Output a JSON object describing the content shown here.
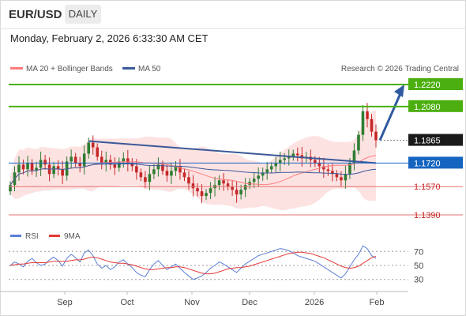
{
  "header": {
    "symbol": "EUR/USD",
    "period": "DAILY",
    "datetime": "Monday, February 2, 2026 6:33:30 AM CET"
  },
  "legend": {
    "ma20": "MA 20 + Bollinger Bands",
    "ma50": "MA 50",
    "credit": "Research © 2026 Trading Central"
  },
  "rsi_legend": {
    "rsi": "RSI",
    "ma9": "9MA"
  },
  "colors": {
    "up": "#2e7d32",
    "down": "#c62828",
    "ma20": "#ff7b7b",
    "ma50": "#3a5a9b",
    "bollinger_fill": "#fde2e2",
    "target": "#4caf10",
    "pivot": "#1565c0",
    "support": "#e57373",
    "trendline": "#3b5998",
    "arrow": "#2f5aa0",
    "rsi": "#5b7fd6",
    "rsi_ma": "#e53935"
  },
  "chart_data": {
    "type": "candlestick",
    "x_labels": [
      "Sep",
      "Oct",
      "Nov",
      "Dec",
      "2026",
      "Feb"
    ],
    "price_levels": [
      {
        "value": 1.222,
        "label": "1.2220",
        "kind": "target"
      },
      {
        "value": 1.208,
        "label": "1.2080",
        "kind": "target"
      },
      {
        "value": 1.1865,
        "label": "1.1865",
        "kind": "last"
      },
      {
        "value": 1.172,
        "label": "1.1720",
        "kind": "pivot"
      },
      {
        "value": 1.157,
        "label": "1.1570",
        "kind": "support"
      },
      {
        "value": 1.139,
        "label": "1.1390",
        "kind": "support"
      }
    ],
    "ohlc_approx": [
      1.158,
      1.166,
      1.171,
      1.168,
      1.172,
      1.167,
      1.169,
      1.174,
      1.171,
      1.165,
      1.17,
      1.168,
      1.164,
      1.173,
      1.176,
      1.172,
      1.17,
      1.178,
      1.185,
      1.182,
      1.176,
      1.172,
      1.174,
      1.171,
      1.169,
      1.173,
      1.175,
      1.172,
      1.17,
      1.166,
      1.163,
      1.16,
      1.165,
      1.168,
      1.171,
      1.167,
      1.164,
      1.167,
      1.17,
      1.166,
      1.163,
      1.159,
      1.156,
      1.154,
      1.151,
      1.153,
      1.156,
      1.158,
      1.161,
      1.159,
      1.157,
      1.155,
      1.152,
      1.155,
      1.158,
      1.16,
      1.162,
      1.164,
      1.166,
      1.168,
      1.17,
      1.172,
      1.174,
      1.175,
      1.176,
      1.178,
      1.177,
      1.175,
      1.176,
      1.174,
      1.172,
      1.17,
      1.168,
      1.167,
      1.165,
      1.163,
      1.161,
      1.165,
      1.172,
      1.18,
      1.19,
      1.205,
      1.2,
      1.192,
      1.1865
    ],
    "trendline": {
      "start": 1.186,
      "end": 1.172
    },
    "arrow": {
      "from": 1.1865,
      "to": 1.222
    },
    "rsi": {
      "levels": [
        70,
        50,
        30
      ],
      "values": [
        50,
        55,
        52,
        48,
        56,
        60,
        54,
        50,
        52,
        58,
        62,
        57,
        49,
        60,
        66,
        61,
        55,
        68,
        72,
        64,
        52,
        46,
        50,
        44,
        48,
        55,
        58,
        52,
        47,
        40,
        36,
        34,
        44,
        52,
        57,
        50,
        44,
        48,
        52,
        46,
        40,
        35,
        30,
        32,
        35,
        40,
        46,
        50,
        55,
        52,
        48,
        44,
        40,
        46,
        52,
        56,
        60,
        64,
        66,
        68,
        70,
        72,
        74,
        73,
        71,
        68,
        64,
        62,
        60,
        58,
        56,
        52,
        48,
        44,
        40,
        36,
        32,
        38,
        48,
        58,
        66,
        78,
        74,
        64,
        60
      ],
      "ma9": [
        50,
        51,
        52,
        52,
        53,
        54,
        54,
        54,
        54,
        55,
        56,
        56,
        56,
        56,
        57,
        58,
        58,
        59,
        61,
        62,
        61,
        59,
        57,
        55,
        54,
        53,
        53,
        52,
        51,
        49,
        47,
        45,
        44,
        44,
        45,
        46,
        47,
        47,
        48,
        48,
        47,
        45,
        43,
        41,
        39,
        38,
        38,
        39,
        41,
        43,
        45,
        46,
        47,
        47,
        48,
        49,
        51,
        53,
        55,
        57,
        59,
        61,
        63,
        65,
        67,
        68,
        69,
        69,
        68,
        67,
        65,
        63,
        61,
        58,
        55,
        52,
        49,
        47,
        46,
        47,
        49,
        53,
        57,
        61,
        63
      ]
    }
  }
}
